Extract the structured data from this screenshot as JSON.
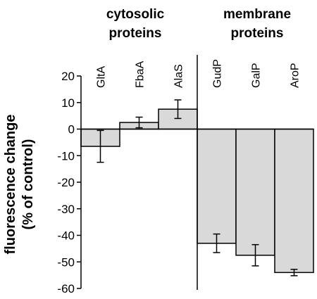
{
  "chart_data": {
    "type": "bar",
    "title": "",
    "xlabel": "",
    "ylabel_line1": "fluorescence change",
    "ylabel_line2": "(% of control)",
    "ylim": [
      -60,
      20
    ],
    "yticks": [
      20,
      10,
      0,
      -10,
      -20,
      -30,
      -40,
      -50,
      -60
    ],
    "groups": [
      {
        "label_line1": "cytosolic",
        "label_line2": "proteins",
        "categories": [
          "GltA",
          "FbaA",
          "AlaS"
        ]
      },
      {
        "label_line1": "membrane",
        "label_line2": "proteins",
        "categories": [
          "GudP",
          "GalP",
          "AroP"
        ]
      }
    ],
    "categories": [
      "GltA",
      "FbaA",
      "AlaS",
      "GudP",
      "GalP",
      "AroP"
    ],
    "values": [
      -6.5,
      2.5,
      7.5,
      -43,
      -47.5,
      -54
    ],
    "errors": [
      6,
      2,
      3.5,
      3.5,
      4,
      1.2
    ],
    "bar_color": "#d9d9d9",
    "outline_color": "#000000",
    "grid": false
  }
}
